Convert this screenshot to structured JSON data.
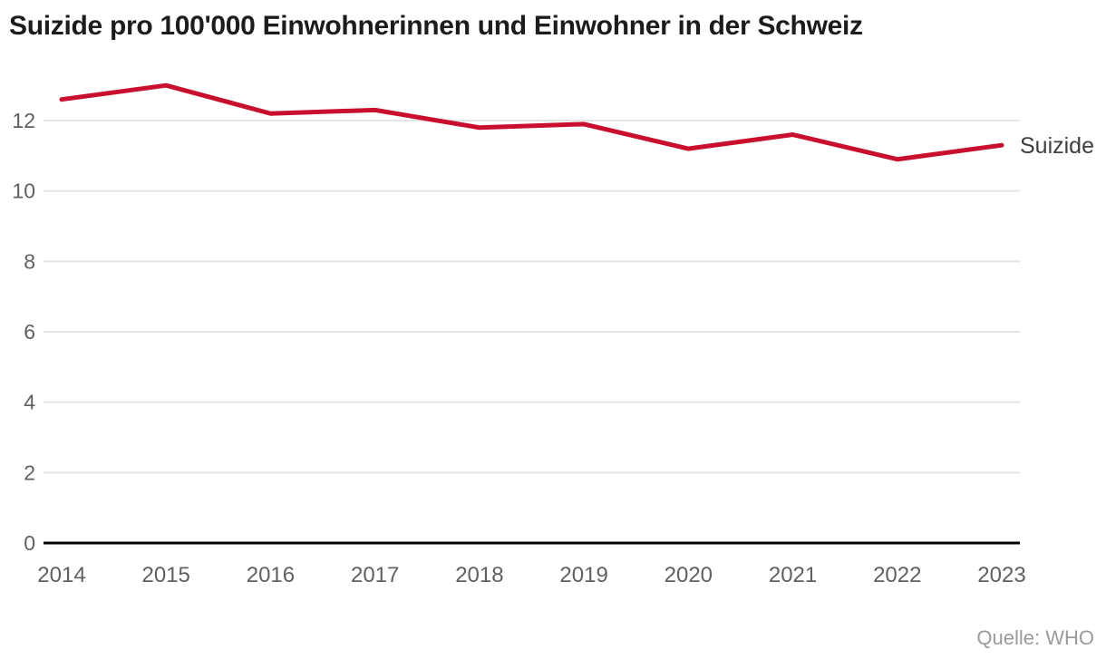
{
  "page": {
    "title": "Suizide pro 100'000 Einwohnerinnen und Einwohner in der Schweiz",
    "source": "Quelle: WHO"
  },
  "chart_data": {
    "type": "line",
    "title": "Suizide pro 100'000 Einwohnerinnen und Einwohner in der Schweiz",
    "source": "Quelle: WHO",
    "categories": [
      "2014",
      "2015",
      "2016",
      "2017",
      "2018",
      "2019",
      "2020",
      "2021",
      "2022",
      "2023"
    ],
    "series": [
      {
        "name": "Suizide",
        "values": [
          12.6,
          13.0,
          12.2,
          12.3,
          11.8,
          11.9,
          11.2,
          11.6,
          10.9,
          11.3
        ],
        "color": "#c8102e"
      }
    ],
    "xlabel": "",
    "ylabel": "",
    "yticks": [
      0,
      2,
      4,
      6,
      8,
      10,
      12
    ],
    "ylim": [
      0,
      13.5
    ],
    "grid": true,
    "legend_position": "right-of-line",
    "colors": {
      "line": "#c8102e",
      "grid": "#e4e4e4",
      "axis": "#000000",
      "tick_label": "#606060",
      "series_label": "#3f3f3f",
      "title": "#1c1c1c",
      "source": "#9b9b9b",
      "background": "#ffffff"
    }
  }
}
